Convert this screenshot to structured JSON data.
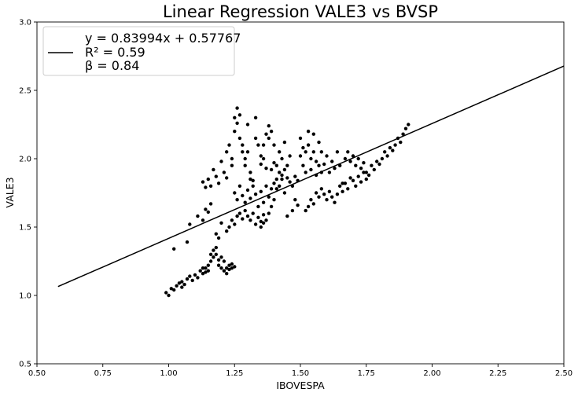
{
  "chart_data": {
    "type": "scatter",
    "title": "Linear Regression VALE3 vs BVSP",
    "xlabel": "IBOVESPA",
    "ylabel": "VALE3",
    "xlim": [
      0.5,
      2.5
    ],
    "ylim": [
      0.5,
      3.0
    ],
    "xticks": [
      "0.50",
      "0.75",
      "1.00",
      "1.25",
      "1.50",
      "1.75",
      "2.00",
      "2.25",
      "2.50"
    ],
    "yticks": [
      "0.5",
      "1.0",
      "1.5",
      "2.0",
      "2.5",
      "3.0"
    ],
    "grid": false,
    "legend_position": "top-left",
    "legend": [
      "y = 0.83994x + 0.57767",
      "R² = 0.59",
      "β = 0.84"
    ],
    "regression": {
      "slope": 0.83994,
      "intercept": 0.57767,
      "x_range": [
        0.58,
        2.5
      ]
    },
    "point_color": "#000000",
    "line_color": "#000000",
    "points": [
      [
        0.99,
        1.02
      ],
      [
        1.0,
        1.0
      ],
      [
        1.01,
        1.05
      ],
      [
        1.02,
        1.04
      ],
      [
        1.03,
        1.07
      ],
      [
        1.04,
        1.09
      ],
      [
        1.05,
        1.06
      ],
      [
        1.05,
        1.1
      ],
      [
        1.06,
        1.08
      ],
      [
        1.07,
        1.12
      ],
      [
        1.08,
        1.14
      ],
      [
        1.09,
        1.11
      ],
      [
        1.1,
        1.15
      ],
      [
        1.11,
        1.13
      ],
      [
        1.12,
        1.18
      ],
      [
        1.13,
        1.16
      ],
      [
        1.14,
        1.2
      ],
      [
        1.15,
        1.18
      ],
      [
        1.15,
        1.22
      ],
      [
        1.16,
        1.25
      ],
      [
        1.16,
        1.3
      ],
      [
        1.17,
        1.28
      ],
      [
        1.17,
        1.33
      ],
      [
        1.18,
        1.3
      ],
      [
        1.18,
        1.35
      ],
      [
        1.19,
        1.26
      ],
      [
        1.19,
        1.22
      ],
      [
        1.2,
        1.2
      ],
      [
        1.2,
        1.28
      ],
      [
        1.21,
        1.25
      ],
      [
        1.21,
        1.18
      ],
      [
        1.22,
        1.2
      ],
      [
        1.22,
        1.16
      ],
      [
        1.23,
        1.22
      ],
      [
        1.23,
        1.19
      ],
      [
        1.24,
        1.23
      ],
      [
        1.24,
        1.2
      ],
      [
        1.25,
        1.21
      ],
      [
        1.14,
        1.17
      ],
      [
        1.13,
        1.2
      ],
      [
        1.02,
        1.34
      ],
      [
        1.07,
        1.39
      ],
      [
        1.08,
        1.52
      ],
      [
        1.11,
        1.58
      ],
      [
        1.13,
        1.55
      ],
      [
        1.15,
        1.61
      ],
      [
        1.14,
        1.63
      ],
      [
        1.16,
        1.67
      ],
      [
        1.18,
        1.45
      ],
      [
        1.19,
        1.42
      ],
      [
        1.2,
        1.53
      ],
      [
        1.22,
        1.47
      ],
      [
        1.23,
        1.5
      ],
      [
        1.24,
        1.55
      ],
      [
        1.25,
        1.52
      ],
      [
        1.26,
        1.58
      ],
      [
        1.27,
        1.6
      ],
      [
        1.28,
        1.56
      ],
      [
        1.29,
        1.62
      ],
      [
        1.3,
        1.58
      ],
      [
        1.31,
        1.55
      ],
      [
        1.32,
        1.6
      ],
      [
        1.33,
        1.52
      ],
      [
        1.34,
        1.57
      ],
      [
        1.35,
        1.54
      ],
      [
        1.36,
        1.59
      ],
      [
        1.37,
        1.55
      ],
      [
        1.38,
        1.6
      ],
      [
        1.39,
        1.65
      ],
      [
        1.4,
        1.7
      ],
      [
        1.13,
        1.83
      ],
      [
        1.14,
        1.79
      ],
      [
        1.15,
        1.85
      ],
      [
        1.16,
        1.8
      ],
      [
        1.17,
        1.92
      ],
      [
        1.18,
        1.87
      ],
      [
        1.19,
        1.82
      ],
      [
        1.2,
        1.98
      ],
      [
        1.21,
        1.9
      ],
      [
        1.22,
        1.86
      ],
      [
        1.22,
        2.05
      ],
      [
        1.23,
        2.1
      ],
      [
        1.24,
        2.0
      ],
      [
        1.24,
        1.95
      ],
      [
        1.25,
        2.3
      ],
      [
        1.25,
        2.2
      ],
      [
        1.26,
        2.37
      ],
      [
        1.26,
        2.26
      ],
      [
        1.27,
        2.32
      ],
      [
        1.27,
        2.15
      ],
      [
        1.28,
        2.1
      ],
      [
        1.28,
        2.05
      ],
      [
        1.29,
        2.0
      ],
      [
        1.29,
        1.95
      ],
      [
        1.3,
        2.25
      ],
      [
        1.3,
        2.05
      ],
      [
        1.31,
        1.9
      ],
      [
        1.31,
        1.85
      ],
      [
        1.32,
        1.8
      ],
      [
        1.33,
        2.15
      ],
      [
        1.33,
        2.3
      ],
      [
        1.34,
        2.1
      ],
      [
        1.35,
        2.02
      ],
      [
        1.35,
        1.96
      ],
      [
        1.36,
        2.1
      ],
      [
        1.36,
        2.0
      ],
      [
        1.37,
        2.18
      ],
      [
        1.37,
        1.93
      ],
      [
        1.38,
        2.24
      ],
      [
        1.38,
        2.15
      ],
      [
        1.39,
        2.2
      ],
      [
        1.39,
        1.92
      ],
      [
        1.4,
        2.1
      ],
      [
        1.4,
        1.97
      ],
      [
        1.41,
        1.95
      ],
      [
        1.42,
        2.05
      ],
      [
        1.43,
        2.0
      ],
      [
        1.44,
        2.12
      ],
      [
        1.45,
        1.95
      ],
      [
        1.46,
        2.02
      ],
      [
        1.25,
        1.75
      ],
      [
        1.26,
        1.7
      ],
      [
        1.27,
        1.8
      ],
      [
        1.28,
        1.73
      ],
      [
        1.29,
        1.68
      ],
      [
        1.3,
        1.77
      ],
      [
        1.31,
        1.71
      ],
      [
        1.32,
        1.84
      ],
      [
        1.33,
        1.74
      ],
      [
        1.34,
        1.65
      ],
      [
        1.35,
        1.76
      ],
      [
        1.36,
        1.68
      ],
      [
        1.37,
        1.8
      ],
      [
        1.38,
        1.72
      ],
      [
        1.39,
        1.78
      ],
      [
        1.4,
        1.82
      ],
      [
        1.41,
        1.85
      ],
      [
        1.42,
        1.9
      ],
      [
        1.43,
        1.88
      ],
      [
        1.44,
        1.92
      ],
      [
        1.45,
        1.86
      ],
      [
        1.46,
        1.83
      ],
      [
        1.47,
        1.8
      ],
      [
        1.48,
        1.87
      ],
      [
        1.49,
        1.84
      ],
      [
        1.5,
        2.15
      ],
      [
        1.5,
        2.02
      ],
      [
        1.51,
        2.08
      ],
      [
        1.51,
        1.95
      ],
      [
        1.52,
        2.05
      ],
      [
        1.52,
        1.9
      ],
      [
        1.53,
        2.2
      ],
      [
        1.53,
        2.1
      ],
      [
        1.54,
        2.0
      ],
      [
        1.54,
        1.92
      ],
      [
        1.55,
        2.18
      ],
      [
        1.55,
        2.05
      ],
      [
        1.56,
        1.98
      ],
      [
        1.56,
        1.88
      ],
      [
        1.57,
        2.12
      ],
      [
        1.57,
        1.95
      ],
      [
        1.58,
        2.05
      ],
      [
        1.58,
        1.9
      ],
      [
        1.59,
        1.96
      ],
      [
        1.6,
        2.02
      ],
      [
        1.61,
        1.9
      ],
      [
        1.62,
        1.98
      ],
      [
        1.63,
        1.93
      ],
      [
        1.64,
        2.05
      ],
      [
        1.65,
        1.95
      ],
      [
        1.52,
        1.62
      ],
      [
        1.53,
        1.65
      ],
      [
        1.54,
        1.7
      ],
      [
        1.55,
        1.67
      ],
      [
        1.56,
        1.75
      ],
      [
        1.57,
        1.72
      ],
      [
        1.58,
        1.78
      ],
      [
        1.59,
        1.74
      ],
      [
        1.6,
        1.7
      ],
      [
        1.61,
        1.76
      ],
      [
        1.62,
        1.72
      ],
      [
        1.63,
        1.68
      ],
      [
        1.64,
        1.74
      ],
      [
        1.65,
        1.8
      ],
      [
        1.66,
        1.76
      ],
      [
        1.67,
        1.82
      ],
      [
        1.68,
        1.78
      ],
      [
        1.69,
        1.86
      ],
      [
        1.7,
        1.84
      ],
      [
        1.71,
        1.8
      ],
      [
        1.72,
        1.87
      ],
      [
        1.73,
        1.83
      ],
      [
        1.74,
        1.9
      ],
      [
        1.75,
        1.85
      ],
      [
        1.76,
        1.88
      ],
      [
        1.77,
        1.95
      ],
      [
        1.78,
        1.92
      ],
      [
        1.79,
        1.98
      ],
      [
        1.8,
        1.96
      ],
      [
        1.81,
        2.0
      ],
      [
        1.82,
        2.05
      ],
      [
        1.83,
        2.02
      ],
      [
        1.84,
        2.08
      ],
      [
        1.85,
        2.06
      ],
      [
        1.86,
        2.1
      ],
      [
        1.87,
        2.15
      ],
      [
        1.88,
        2.12
      ],
      [
        1.89,
        2.18
      ],
      [
        1.9,
        2.22
      ],
      [
        1.91,
        2.25
      ],
      [
        1.67,
        2.0
      ],
      [
        1.68,
        2.05
      ],
      [
        1.69,
        1.98
      ],
      [
        1.7,
        2.02
      ],
      [
        1.71,
        1.95
      ],
      [
        1.72,
        2.0
      ],
      [
        1.73,
        1.93
      ],
      [
        1.74,
        1.97
      ],
      [
        1.75,
        1.9
      ],
      [
        1.66,
        1.82
      ],
      [
        1.45,
        1.58
      ],
      [
        1.47,
        1.62
      ],
      [
        1.48,
        1.7
      ],
      [
        1.49,
        1.66
      ],
      [
        1.42,
        1.8
      ],
      [
        1.43,
        1.85
      ],
      [
        1.41,
        1.78
      ],
      [
        1.44,
        1.75
      ],
      [
        1.35,
        1.5
      ],
      [
        1.36,
        1.53
      ]
    ]
  }
}
